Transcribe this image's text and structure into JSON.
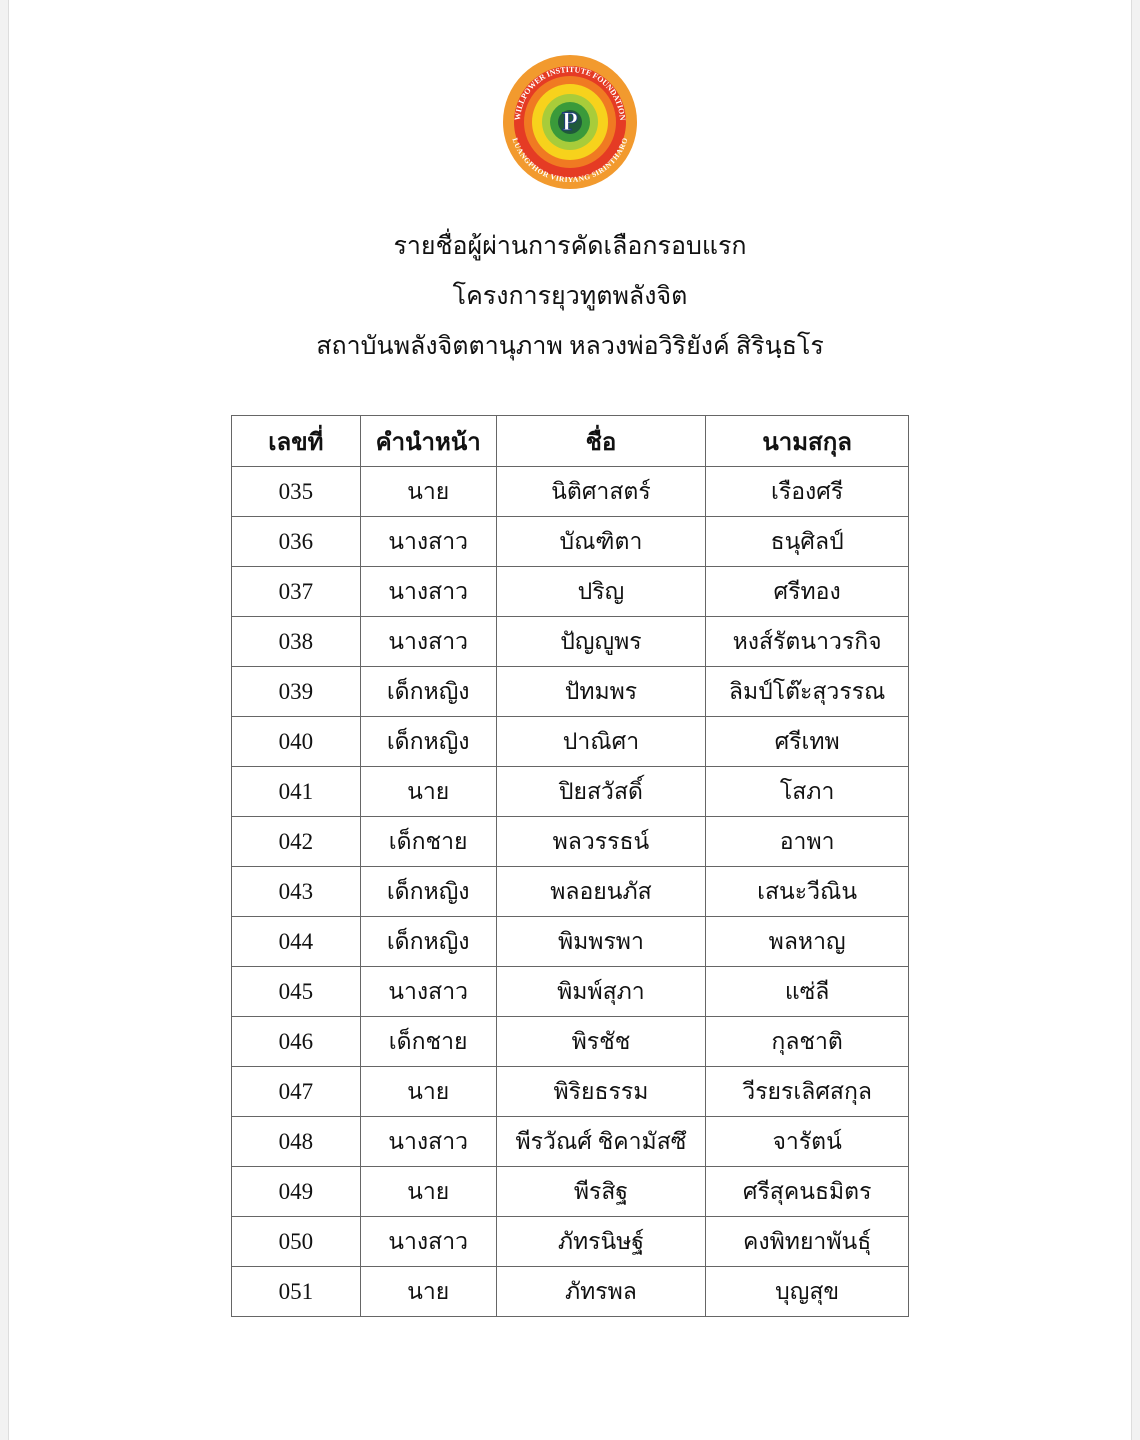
{
  "logo": {
    "text_top": "WILLPOWER INSTITUTE FOUNDATION",
    "text_bottom": "LUANGPHOR VIRIYANG SIRINTHARO",
    "monogram": "P",
    "colors": [
      "#f29a2e",
      "#e53b24",
      "#f7d21c",
      "#3a9a3a",
      "#1f3d7a"
    ]
  },
  "title_lines": [
    "รายชื่อผู้ผ่านการคัดเลือกรอบแรก",
    "โครงการยุวทูตพลังจิต",
    "สถาบันพลังจิตตานุภาพ หลวงพ่อวิริยังค์ สิรินฺธโร"
  ],
  "table": {
    "headers": [
      "เลขที่",
      "คำนำหน้า",
      "ชื่อ",
      "นามสกุล"
    ],
    "rows": [
      [
        "035",
        "นาย",
        "นิติศาสตร์",
        "เรืองศรี"
      ],
      [
        "036",
        "นางสาว",
        "บัณฑิตา",
        "ธนุศิลป์"
      ],
      [
        "037",
        "นางสาว",
        "ปริญ",
        "ศรีทอง"
      ],
      [
        "038",
        "นางสาว",
        "ปัญญูพร",
        "หงส์รัตนาวรกิจ"
      ],
      [
        "039",
        "เด็กหญิง",
        "ปัทมพร",
        "ลิมป์โต๊ะสุวรรณ"
      ],
      [
        "040",
        "เด็กหญิง",
        "ปาณิศา",
        "ศรีเทพ"
      ],
      [
        "041",
        "นาย",
        "ปิยสวัสดิ์",
        "โสภา"
      ],
      [
        "042",
        "เด็กชาย",
        "พลวรรธน์",
        "อาพา"
      ],
      [
        "043",
        "เด็กหญิง",
        "พลอยนภัส",
        "เสนะวีณิน"
      ],
      [
        "044",
        "เด็กหญิง",
        "พิมพรพา",
        "พลหาญ"
      ],
      [
        "045",
        "นางสาว",
        "พิมพ์สุภา",
        "แซ่ลี"
      ],
      [
        "046",
        "เด็กชาย",
        "พิรชัช",
        "กุลชาติ"
      ],
      [
        "047",
        "นาย",
        "พิริยธรรม",
        "วีรยรเลิศสกุล"
      ],
      [
        "048",
        "นางสาว",
        "พีรวัณศ์ ชิคามัสซึ",
        "จารัตน์"
      ],
      [
        "049",
        "นาย",
        "พีรสิฐ",
        "ศรีสุคนธมิตร"
      ],
      [
        "050",
        "นางสาว",
        "ภัทรนิษฐ์",
        "คงพิทยาพันธุ์"
      ],
      [
        "051",
        "นาย",
        "ภัทรพล",
        "บุญสุข"
      ]
    ]
  }
}
